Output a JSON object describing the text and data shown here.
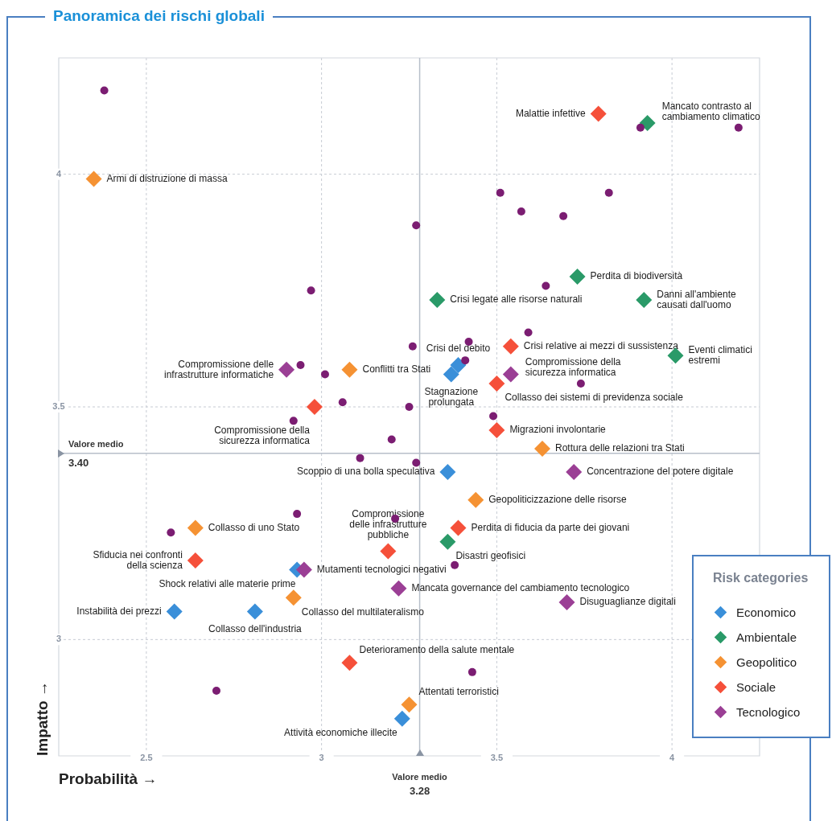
{
  "chart_data": {
    "type": "scatter",
    "title": "Panoramica dei rischi globali",
    "xlabel": "Probabilità →",
    "ylabel": "Impatto →",
    "legend_title": "Risk categories",
    "legend": "bottom right",
    "grid": true,
    "marker": "diamond",
    "xlim": [
      2.25,
      4.25
    ],
    "xticks": [
      2.5,
      3,
      3.5,
      4
    ],
    "ylim": [
      2.75,
      4.25
    ],
    "yticks": [
      3,
      3.5,
      4
    ],
    "series": [
      {
        "name": "Economico",
        "color": "#3a8fd9",
        "x": [
          3.37,
          3.39,
          3.36,
          2.93,
          2.58,
          2.81,
          3.23
        ],
        "values": [
          3.57,
          3.59,
          3.36,
          3.15,
          3.06,
          3.06,
          2.83
        ]
      },
      {
        "name": "Ambientale",
        "color": "#2a9a68",
        "x": [
          3.93,
          3.73,
          3.33,
          3.92,
          4.01,
          3.36
        ],
        "values": [
          4.11,
          3.78,
          3.73,
          3.73,
          3.61,
          3.21
        ]
      },
      {
        "name": "Geopolitico",
        "color": "#f59233",
        "x": [
          2.35,
          3.08,
          3.63,
          3.44,
          2.64,
          2.92,
          3.25
        ],
        "values": [
          3.99,
          3.58,
          3.41,
          3.3,
          3.24,
          3.09,
          2.86
        ]
      },
      {
        "name": "Sociale",
        "color": "#f5503a",
        "x": [
          3.79,
          3.54,
          3.5,
          2.98,
          3.5,
          3.39,
          3.19,
          2.64,
          3.08
        ],
        "values": [
          4.13,
          3.63,
          3.55,
          3.5,
          3.45,
          3.24,
          3.19,
          3.17,
          2.95
        ]
      },
      {
        "name": "Tecnologico",
        "color": "#9b3f95",
        "x": [
          2.9,
          3.54,
          3.72,
          2.95,
          3.22,
          3.7
        ],
        "values": [
          3.58,
          3.57,
          3.36,
          3.15,
          3.11,
          3.08
        ]
      },
      {
        "color": "#7b1d72",
        "marker": "circle",
        "x": [
          2.38,
          3.91,
          4.19,
          3.51,
          3.82,
          3.57,
          3.69,
          3.27,
          3.64,
          2.97,
          3.59,
          3.42,
          3.26,
          2.94,
          3.41,
          3.01,
          3.74,
          3.06,
          3.25,
          2.92,
          3.49,
          3.2,
          3.11,
          3.27,
          2.93,
          2.57,
          3.21,
          3.38,
          3.43,
          2.7
        ],
        "values": [
          4.18,
          4.1,
          4.1,
          3.96,
          3.96,
          3.92,
          3.91,
          3.89,
          3.76,
          3.75,
          3.66,
          3.64,
          3.63,
          3.59,
          3.6,
          3.57,
          3.55,
          3.51,
          3.5,
          3.47,
          3.48,
          3.43,
          3.39,
          3.38,
          3.27,
          3.23,
          3.26,
          3.16,
          2.93,
          2.89
        ]
      }
    ],
    "ref_lines": [
      {
        "axis": "y",
        "value": 3.4,
        "label": "Valore medio 3.40",
        "color": "#b7bfca"
      },
      {
        "axis": "x",
        "value": 3.28,
        "label": "Valore medio 3.28",
        "color": "#b7bfca"
      }
    ],
    "annotations": [
      {
        "text": "Stagnazione prolungata",
        "x": 3.37,
        "y": 3.57
      },
      {
        "text": "Crisi del debito",
        "x": 3.39,
        "y": 3.59
      },
      {
        "text": "Scoppio di una bolla speculativa",
        "x": 3.36,
        "y": 3.36
      },
      {
        "text": "Shock relativi alle materie prime",
        "x": 2.94,
        "y": 3.15
      },
      {
        "text": "Instabilità dei prezzi",
        "x": 2.58,
        "y": 3.06
      },
      {
        "text": "Collasso dell'industria",
        "x": 2.81,
        "y": 3.06
      },
      {
        "text": "Attività economiche illecite",
        "x": 3.23,
        "y": 2.83
      },
      {
        "text": "Mancato contrasto al cambiamento climatico",
        "x": 3.93,
        "y": 4.11
      },
      {
        "text": "Perdita di biodiversità",
        "x": 3.73,
        "y": 3.78
      },
      {
        "text": "Crisi legate alle risorse naturali",
        "x": 3.33,
        "y": 3.73
      },
      {
        "text": "Danni all'ambiente causati dall'uomo",
        "x": 3.92,
        "y": 3.73
      },
      {
        "text": "Eventi climatici estremi",
        "x": 4.01,
        "y": 3.61
      },
      {
        "text": "Disastri geofisici",
        "x": 3.36,
        "y": 3.21
      },
      {
        "text": "Armi di distruzione di massa",
        "x": 2.35,
        "y": 3.99
      },
      {
        "text": "Conflitti tra Stati",
        "x": 3.08,
        "y": 3.58
      },
      {
        "text": "Rottura delle relazioni tra Stati",
        "x": 3.63,
        "y": 3.41
      },
      {
        "text": "Geopoliticizzazione delle risorse",
        "x": 3.44,
        "y": 3.3
      },
      {
        "text": "Collasso di uno Stato",
        "x": 2.64,
        "y": 3.24
      },
      {
        "text": "Collasso del multilateralismo",
        "x": 2.92,
        "y": 3.09
      },
      {
        "text": "Attentati terroristici",
        "x": 3.25,
        "y": 2.86
      },
      {
        "text": "Malattie infettive",
        "x": 3.79,
        "y": 4.13
      },
      {
        "text": "Crisi relative ai mezzi di sussistenza",
        "x": 3.54,
        "y": 3.63
      },
      {
        "text": "Collasso dei sistemi di previdenza sociale",
        "x": 3.5,
        "y": 3.55
      },
      {
        "text": "Compromissione della sicurezza informatica",
        "x": 2.98,
        "y": 3.5
      },
      {
        "text": "Migrazioni involontarie",
        "x": 3.5,
        "y": 3.45
      },
      {
        "text": "Perdita di fiducia da parte dei giovani",
        "x": 3.39,
        "y": 3.24
      },
      {
        "text": "Compromissione delle infrastrutture pubbliche",
        "x": 3.19,
        "y": 3.19
      },
      {
        "text": "Sfiducia nei confronti della scienza",
        "x": 2.64,
        "y": 3.17
      },
      {
        "text": "Deterioramento della salute mentale",
        "x": 3.08,
        "y": 2.95
      },
      {
        "text": "Compromissione delle infrastrutture informatiche",
        "x": 2.9,
        "y": 3.58
      },
      {
        "text": "Compromissione della sicurezza informatica",
        "x": 3.54,
        "y": 3.57
      },
      {
        "text": "Concentrazione del potere digitale",
        "x": 3.72,
        "y": 3.36
      },
      {
        "text": "Mutamenti tecnologici negativi",
        "x": 2.95,
        "y": 3.15
      },
      {
        "text": "Mancata governance del cambiamento tecnologico",
        "x": 3.22,
        "y": 3.11
      },
      {
        "text": "Disuguaglianze digitali",
        "x": 3.7,
        "y": 3.08
      }
    ]
  }
}
